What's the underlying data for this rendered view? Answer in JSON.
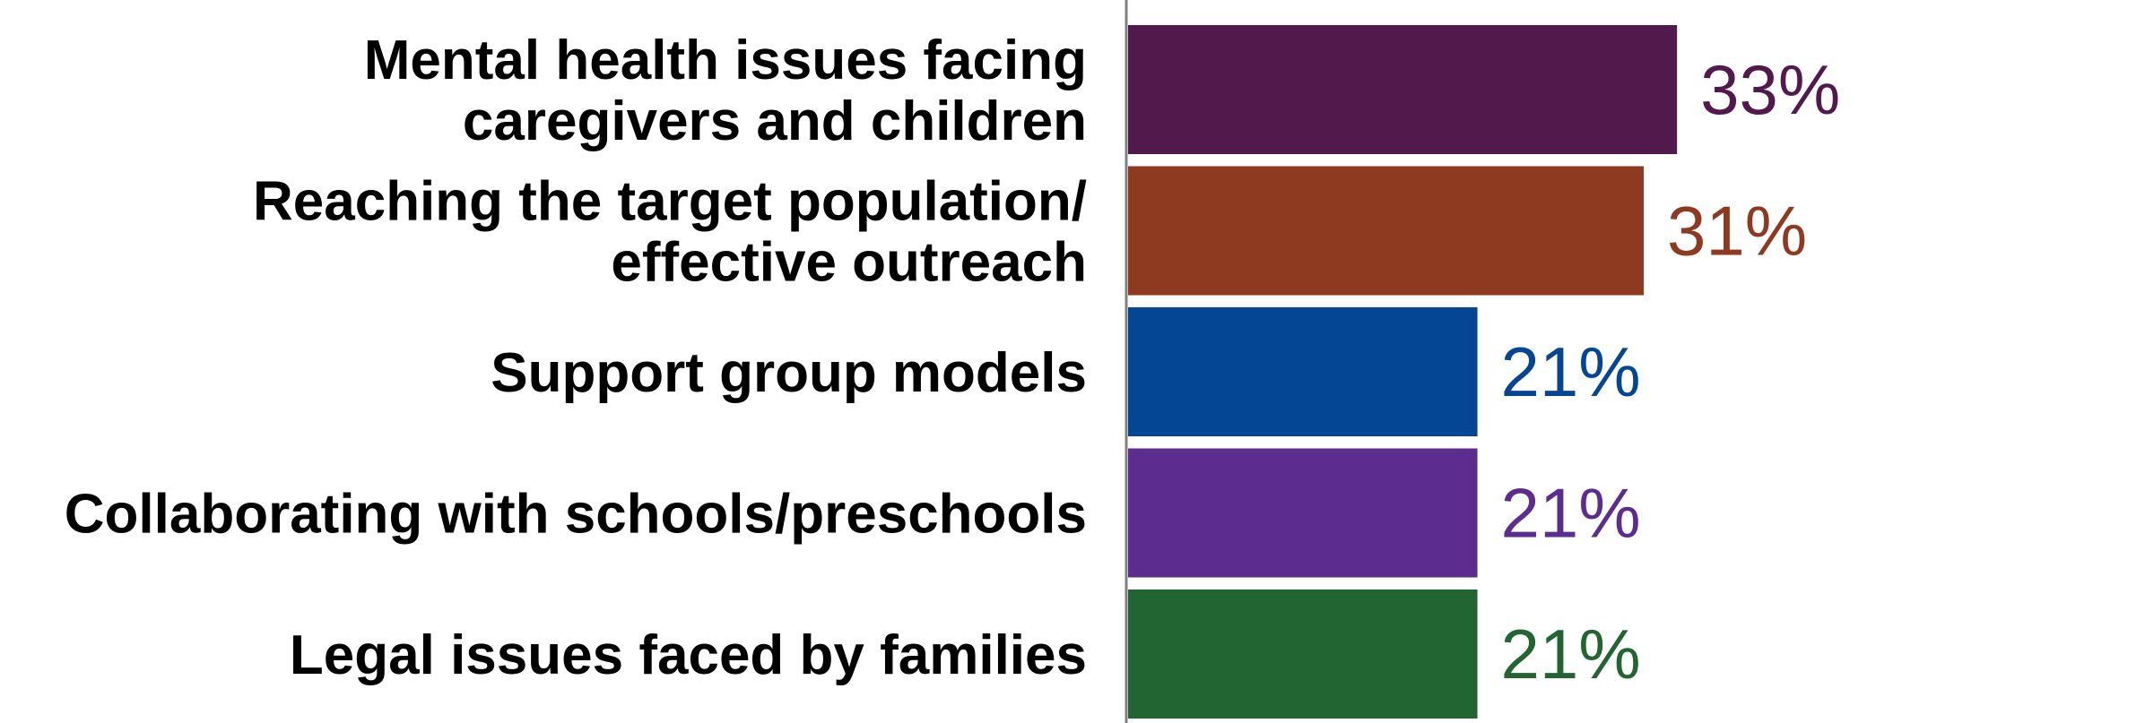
{
  "chart_data": {
    "type": "bar",
    "orientation": "horizontal",
    "categories": [
      [
        "Mental health issues facing",
        "caregivers and children"
      ],
      [
        "Reaching the target population/",
        "effective outreach"
      ],
      [
        "Support group models"
      ],
      [
        "Collaborating with schools/preschools"
      ],
      [
        "Legal issues faced by families"
      ]
    ],
    "values": [
      33,
      31,
      21,
      21,
      21
    ],
    "value_labels": [
      "33%",
      "31%",
      "21%",
      "21%",
      "21%"
    ],
    "colors": [
      "#521a4c",
      "#8e3a21",
      "#044594",
      "#5c2d8e",
      "#236433"
    ],
    "title": "",
    "xlabel": "",
    "ylabel": "",
    "xlim": [
      0,
      40
    ],
    "grid": false,
    "legend": "none"
  }
}
